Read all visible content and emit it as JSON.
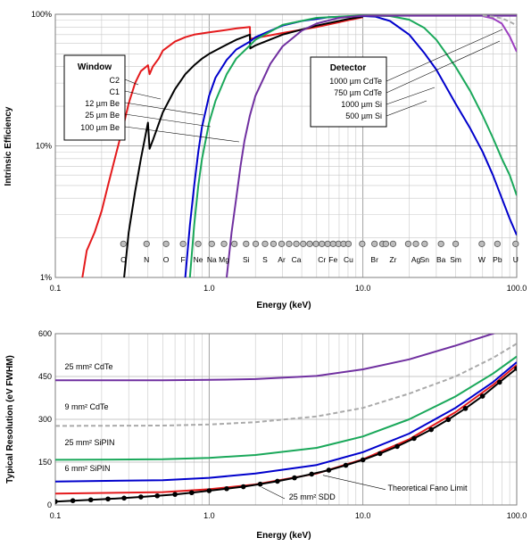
{
  "chart_data": [
    {
      "type": "line",
      "xlabel": "Energy (keV)",
      "ylabel": "Intrinsic Efficiency",
      "xscale": "log",
      "yscale": "log",
      "xlim": [
        0.1,
        100
      ],
      "ylim": [
        1,
        100
      ],
      "xticks": [
        {
          "v": 0.1,
          "label": "0.1"
        },
        {
          "v": 1,
          "label": "1.0"
        },
        {
          "v": 10,
          "label": "10.0"
        },
        {
          "v": 100,
          "label": "100.0"
        }
      ],
      "yticks": [
        {
          "v": 1,
          "label": "1%"
        },
        {
          "v": 10,
          "label": "10%"
        },
        {
          "v": 100,
          "label": "100%"
        }
      ],
      "grid": true,
      "window_legend": {
        "title": "Window",
        "items": [
          "C2",
          "C1",
          "12 µm Be",
          "25 µm Be",
          "100 µm Be"
        ]
      },
      "detector_legend": {
        "title": "Detector",
        "items": [
          "1000 µm CdTe",
          "750 µm CdTe",
          "1000 µm Si",
          "500 µm Si"
        ]
      },
      "series": [
        {
          "color": "#e41a1c",
          "points": [
            [
              0.15,
              1.0
            ],
            [
              0.16,
              1.6
            ],
            [
              0.18,
              2.2
            ],
            [
              0.2,
              3.2
            ],
            [
              0.22,
              5.0
            ],
            [
              0.25,
              9.0
            ],
            [
              0.28,
              15.0
            ],
            [
              0.3,
              21.0
            ],
            [
              0.33,
              30.0
            ],
            [
              0.36,
              37.0
            ],
            [
              0.4,
              41.0
            ],
            [
              0.41,
              35.0
            ],
            [
              0.43,
              40.0
            ],
            [
              0.47,
              46.0
            ],
            [
              0.5,
              53.0
            ],
            [
              0.6,
              62.0
            ],
            [
              0.7,
              67.0
            ],
            [
              0.8,
              70.0
            ],
            [
              1.0,
              73.0
            ],
            [
              1.2,
              75.0
            ],
            [
              1.5,
              78.0
            ],
            [
              1.84,
              80.0
            ],
            [
              1.85,
              65.0
            ],
            [
              2.0,
              66.0
            ],
            [
              3.0,
              72.0
            ],
            [
              5.0,
              80.0
            ],
            [
              8.0,
              90.0
            ],
            [
              10.0,
              95.0
            ]
          ]
        },
        {
          "color": "#000000",
          "points": [
            [
              0.28,
              1.0
            ],
            [
              0.3,
              2.2
            ],
            [
              0.33,
              4.5
            ],
            [
              0.36,
              8.0
            ],
            [
              0.38,
              11.0
            ],
            [
              0.4,
              15.0
            ],
            [
              0.41,
              9.5
            ],
            [
              0.43,
              11.0
            ],
            [
              0.5,
              18.0
            ],
            [
              0.6,
              27.0
            ],
            [
              0.7,
              35.0
            ],
            [
              0.8,
              41.0
            ],
            [
              0.9,
              46.0
            ],
            [
              1.0,
              50.0
            ],
            [
              1.2,
              56.0
            ],
            [
              1.5,
              64.0
            ],
            [
              1.84,
              70.0
            ],
            [
              1.85,
              55.0
            ],
            [
              2.0,
              58.0
            ],
            [
              3.0,
              70.0
            ],
            [
              5.0,
              82.0
            ],
            [
              8.0,
              92.0
            ],
            [
              10.0,
              96.0
            ]
          ]
        },
        {
          "color": "#0000cc",
          "points": [
            [
              0.7,
              1.0
            ],
            [
              0.75,
              2.5
            ],
            [
              0.8,
              5.0
            ],
            [
              0.85,
              9.0
            ],
            [
              0.9,
              14.0
            ],
            [
              1.0,
              24.0
            ],
            [
              1.1,
              33.0
            ],
            [
              1.3,
              45.0
            ],
            [
              1.5,
              54.0
            ],
            [
              1.84,
              62.0
            ],
            [
              2.0,
              67.0
            ],
            [
              3.0,
              82.0
            ],
            [
              4.0,
              89.0
            ],
            [
              6.0,
              95.0
            ],
            [
              10.0,
              97.0
            ],
            [
              12.0,
              96.0
            ],
            [
              15.0,
              89.0
            ],
            [
              20.0,
              70.0
            ],
            [
              25.0,
              51.0
            ],
            [
              30.0,
              38.0
            ],
            [
              40.0,
              21.0
            ],
            [
              50.0,
              13.5
            ],
            [
              60.0,
              9.0
            ],
            [
              70.0,
              6.0
            ],
            [
              80.0,
              4.0
            ],
            [
              90.0,
              2.8
            ],
            [
              100.0,
              2.1
            ]
          ]
        },
        {
          "color": "#1aa85a",
          "points": [
            [
              0.75,
              1.0
            ],
            [
              0.8,
              2.5
            ],
            [
              0.85,
              5.0
            ],
            [
              0.9,
              8.0
            ],
            [
              1.0,
              15.0
            ],
            [
              1.1,
              22.0
            ],
            [
              1.3,
              35.0
            ],
            [
              1.5,
              46.0
            ],
            [
              1.84,
              58.0
            ],
            [
              2.0,
              64.0
            ],
            [
              3.0,
              83.0
            ],
            [
              5.0,
              94.0
            ],
            [
              10.0,
              98.0
            ],
            [
              15.0,
              97.0
            ],
            [
              20.0,
              91.0
            ],
            [
              25.0,
              79.0
            ],
            [
              30.0,
              64.0
            ],
            [
              40.0,
              40.0
            ],
            [
              50.0,
              26.0
            ],
            [
              60.0,
              17.0
            ],
            [
              70.0,
              11.5
            ],
            [
              80.0,
              8.0
            ],
            [
              90.0,
              6.0
            ],
            [
              100.0,
              4.2
            ]
          ]
        },
        {
          "color": "#7030a0",
          "points": [
            [
              1.3,
              1.0
            ],
            [
              1.4,
              2.2
            ],
            [
              1.5,
              4.0
            ],
            [
              1.6,
              7.0
            ],
            [
              1.7,
              11.0
            ],
            [
              1.84,
              17.0
            ],
            [
              2.0,
              24.0
            ],
            [
              2.5,
              42.0
            ],
            [
              3.0,
              57.0
            ],
            [
              4.0,
              75.0
            ],
            [
              5.0,
              85.0
            ],
            [
              7.0,
              94.0
            ],
            [
              10.0,
              97.5
            ],
            [
              100.0,
              97.5
            ]
          ]
        },
        {
          "color": "#9c3fc0",
          "points": [
            [
              60.0,
              97.0
            ],
            [
              70.0,
              93.0
            ],
            [
              80.0,
              85.0
            ],
            [
              90.0,
              68.0
            ],
            [
              100.0,
              52.0
            ]
          ]
        },
        {
          "color": "#aaaaaa",
          "dash": true,
          "points": [
            [
              60.0,
              98.0
            ],
            [
              70.0,
              96.0
            ],
            [
              80.0,
              93.0
            ],
            [
              90.0,
              88.0
            ],
            [
              100.0,
              82.0
            ]
          ]
        }
      ],
      "elements": [
        {
          "label": "C",
          "x": 0.277
        },
        {
          "label": "N",
          "x": 0.392
        },
        {
          "label": "O",
          "x": 0.525
        },
        {
          "label": "F",
          "x": 0.677
        },
        {
          "label": "Ne",
          "x": 0.849
        },
        {
          "label": "Na",
          "x": 1.04
        },
        {
          "label": "Mg",
          "x": 1.25
        },
        {
          "label": "Si",
          "x": 1.74
        },
        {
          "label": "S",
          "x": 2.31
        },
        {
          "label": "Ar",
          "x": 2.96
        },
        {
          "label": "Ca",
          "x": 3.69
        },
        {
          "label": "Cr",
          "x": 5.41
        },
        {
          "label": "Fe",
          "x": 6.4
        },
        {
          "label": "Cu",
          "x": 8.05
        },
        {
          "label": "Br",
          "x": 11.9
        },
        {
          "label": "Zr",
          "x": 15.7
        },
        {
          "label": "Ag",
          "x": 22.1
        },
        {
          "label": "Sn",
          "x": 25.2
        },
        {
          "label": "Ba",
          "x": 32.2
        },
        {
          "label": "Sm",
          "x": 40.1
        },
        {
          "label": "W",
          "x": 59.3
        },
        {
          "label": "Pb",
          "x": 74.9
        },
        {
          "label": "U",
          "x": 98.4
        }
      ],
      "extra_markers": [
        1.46,
        2.01,
        2.62,
        3.31,
        4.09,
        4.51,
        4.95,
        5.9,
        6.93,
        7.48,
        9.89,
        13.4,
        14.1,
        19.7
      ],
      "marker_level": 1.8
    },
    {
      "type": "line",
      "xlabel": "Energy (keV)",
      "ylabel": "Typical Resolution (eV FWHM)",
      "xscale": "log",
      "xlim": [
        0.1,
        100
      ],
      "ylim": [
        0,
        600
      ],
      "xticks": [
        {
          "v": 0.1,
          "label": "0.1"
        },
        {
          "v": 1,
          "label": "1.0"
        },
        {
          "v": 10,
          "label": "10.0"
        },
        {
          "v": 100,
          "label": "100.0"
        }
      ],
      "yticks": [
        0,
        150,
        300,
        450,
        600
      ],
      "grid": true,
      "series": [
        {
          "name": "25 mm² CdTe",
          "color": "#7030a0",
          "points": [
            [
              0.1,
              437
            ],
            [
              0.5,
              437
            ],
            [
              1.0,
              438
            ],
            [
              2.0,
              441
            ],
            [
              5.0,
              452
            ],
            [
              10.0,
              475
            ],
            [
              20.0,
              510
            ],
            [
              40.0,
              558
            ],
            [
              70.0,
              600
            ],
            [
              100.0,
              630
            ]
          ]
        },
        {
          "name": "9 mm² CdTe",
          "color": "#aaaaaa",
          "dash": true,
          "points": [
            [
              0.1,
              277
            ],
            [
              0.5,
              278
            ],
            [
              1.0,
              282
            ],
            [
              2.0,
              290
            ],
            [
              5.0,
              310
            ],
            [
              10.0,
              340
            ],
            [
              20.0,
              390
            ],
            [
              40.0,
              450
            ],
            [
              70.0,
              515
            ],
            [
              100.0,
              565
            ]
          ]
        },
        {
          "name": "25 mm² SiPIN",
          "color": "#1aa85a",
          "points": [
            [
              0.1,
              158
            ],
            [
              0.5,
              160
            ],
            [
              1.0,
              165
            ],
            [
              2.0,
              175
            ],
            [
              5.0,
              200
            ],
            [
              10.0,
              240
            ],
            [
              20.0,
              300
            ],
            [
              40.0,
              380
            ],
            [
              70.0,
              460
            ],
            [
              100.0,
              520
            ]
          ]
        },
        {
          "name": "6 mm² SiPIN",
          "color": "#0000cc",
          "points": [
            [
              0.1,
              82
            ],
            [
              0.5,
              87
            ],
            [
              1.0,
              95
            ],
            [
              2.0,
              110
            ],
            [
              5.0,
              140
            ],
            [
              10.0,
              185
            ],
            [
              20.0,
              250
            ],
            [
              40.0,
              340
            ],
            [
              70.0,
              430
            ],
            [
              100.0,
              500
            ]
          ]
        },
        {
          "name": "25 mm² SDD",
          "color": "#e41a1c",
          "points": [
            [
              0.1,
              40
            ],
            [
              0.5,
              45
            ],
            [
              1.0,
              55
            ],
            [
              2.0,
              72
            ],
            [
              5.0,
              110
            ],
            [
              10.0,
              160
            ],
            [
              20.0,
              230
            ],
            [
              40.0,
              325
            ],
            [
              70.0,
              420
            ],
            [
              100.0,
              490
            ]
          ]
        },
        {
          "name": "Theoretical Fano Limit",
          "color": "#000000",
          "markers": true,
          "points": [
            [
              0.1,
              12
            ],
            [
              0.13,
              15
            ],
            [
              0.17,
              18
            ],
            [
              0.22,
              21
            ],
            [
              0.28,
              24
            ],
            [
              0.36,
              28
            ],
            [
              0.46,
              32
            ],
            [
              0.6,
              37
            ],
            [
              0.77,
              43
            ],
            [
              1.0,
              50
            ],
            [
              1.3,
              57
            ],
            [
              1.67,
              64
            ],
            [
              2.15,
              73
            ],
            [
              2.78,
              83
            ],
            [
              3.59,
              95
            ],
            [
              4.64,
              108
            ],
            [
              6.0,
              122
            ],
            [
              7.74,
              139
            ],
            [
              10.0,
              158
            ],
            [
              12.9,
              180
            ],
            [
              16.7,
              205
            ],
            [
              21.5,
              233
            ],
            [
              27.8,
              264
            ],
            [
              35.9,
              299
            ],
            [
              46.4,
              338
            ],
            [
              59.9,
              381
            ],
            [
              77.4,
              430
            ],
            [
              100.0,
              478
            ]
          ]
        }
      ],
      "labels": [
        {
          "text": "25 mm² CdTe",
          "x": 0.115,
          "y": 475
        },
        {
          "text": "9 mm² CdTe",
          "x": 0.115,
          "y": 335
        },
        {
          "text": "25 mm² SiPIN",
          "x": 0.115,
          "y": 210
        },
        {
          "text": "6 mm² SiPIN",
          "x": 0.115,
          "y": 118
        },
        {
          "text": "25 mm² SDD",
          "x": 3.3,
          "y": 18
        },
        {
          "text": "Theoretical Fano Limit",
          "x": 14.5,
          "y": 50
        }
      ]
    }
  ]
}
